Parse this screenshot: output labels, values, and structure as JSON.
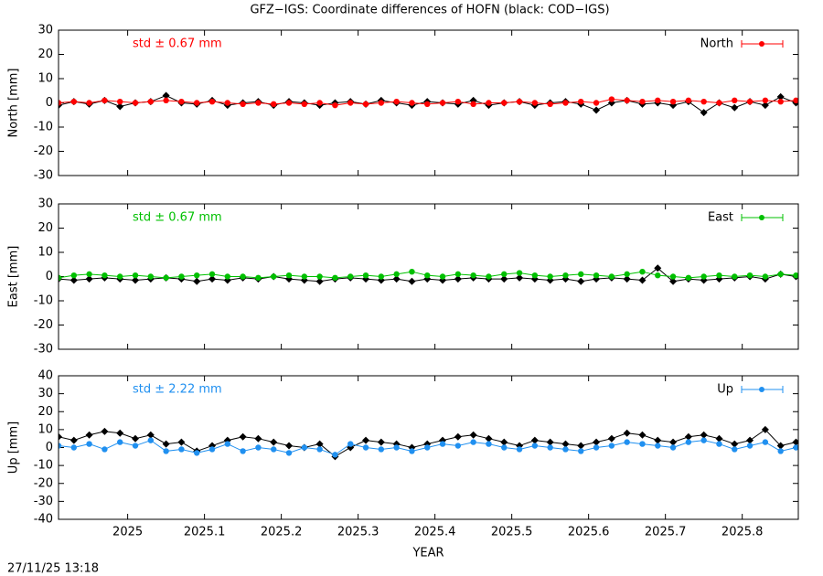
{
  "title": "GFZ−IGS: Coordinate differences of HOFN (black: COD−IGS)",
  "footer": "27/11/25 13:18",
  "chart_data": [
    {
      "type": "line",
      "ylabel": "North [mm]",
      "annotation": {
        "text": "std ± 0.67 mm",
        "color": "#ff0000"
      },
      "xlim": [
        2024.91,
        2025.873
      ],
      "xticks": [
        2025,
        2025.1,
        2025.2,
        2025.3,
        2025.4,
        2025.5,
        2025.6,
        2025.7,
        2025.8
      ],
      "xtick_labels": false,
      "ylim": [
        -30,
        30
      ],
      "yticks": [
        -30,
        -20,
        -10,
        0,
        10,
        20,
        30
      ],
      "x": [
        2024.91,
        2024.93,
        2024.95,
        2024.97,
        2024.99,
        2025.01,
        2025.03,
        2025.05,
        2025.07,
        2025.09,
        2025.11,
        2025.13,
        2025.15,
        2025.17,
        2025.19,
        2025.21,
        2025.23,
        2025.25,
        2025.27,
        2025.29,
        2025.31,
        2025.33,
        2025.35,
        2025.37,
        2025.39,
        2025.41,
        2025.43,
        2025.45,
        2025.47,
        2025.49,
        2025.51,
        2025.53,
        2025.55,
        2025.57,
        2025.59,
        2025.61,
        2025.63,
        2025.65,
        2025.67,
        2025.69,
        2025.71,
        2025.73,
        2025.75,
        2025.77,
        2025.79,
        2025.81,
        2025.83,
        2025.85,
        2025.87
      ],
      "series": [
        {
          "color": "#000000",
          "marker": "diamond",
          "values": [
            -1,
            0.5,
            -0.5,
            1,
            -1.5,
            0,
            0.5,
            3,
            0,
            -0.5,
            1,
            -1,
            0,
            0.5,
            -1,
            0.5,
            0,
            -1,
            0,
            0.5,
            -0.5,
            1,
            0,
            -1,
            0.5,
            0,
            -0.5,
            1,
            -1,
            0,
            0.5,
            -1,
            0,
            0.5,
            -0.5,
            -3,
            0,
            1,
            -0.5,
            0,
            -1,
            0.5,
            -4,
            0,
            -2,
            0.5,
            -1,
            2.5,
            0
          ]
        },
        {
          "name": "North",
          "color": "#ff0000",
          "marker": "circle",
          "values": [
            0,
            0.5,
            0,
            1,
            0.5,
            0,
            0.5,
            1,
            0.5,
            0,
            0.5,
            0,
            -0.5,
            0,
            -0.5,
            0,
            -0.5,
            0,
            -1,
            0,
            -0.5,
            0,
            0.5,
            0,
            -0.5,
            0,
            0.5,
            -0.5,
            0,
            0,
            0.5,
            0,
            -0.5,
            0,
            0.5,
            0,
            1.5,
            1,
            0.5,
            1,
            0.5,
            1,
            0.5,
            0,
            1,
            0.5,
            1,
            0.5,
            1
          ]
        }
      ]
    },
    {
      "type": "line",
      "ylabel": "East [mm]",
      "annotation": {
        "text": "std ± 0.67 mm",
        "color": "#00c000"
      },
      "xlim": [
        2024.91,
        2025.873
      ],
      "xticks": [
        2025,
        2025.1,
        2025.2,
        2025.3,
        2025.4,
        2025.5,
        2025.6,
        2025.7,
        2025.8
      ],
      "xtick_labels": false,
      "ylim": [
        -30,
        30
      ],
      "yticks": [
        -30,
        -20,
        -10,
        0,
        10,
        20,
        30
      ],
      "x": [
        2024.91,
        2024.93,
        2024.95,
        2024.97,
        2024.99,
        2025.01,
        2025.03,
        2025.05,
        2025.07,
        2025.09,
        2025.11,
        2025.13,
        2025.15,
        2025.17,
        2025.19,
        2025.21,
        2025.23,
        2025.25,
        2025.27,
        2025.29,
        2025.31,
        2025.33,
        2025.35,
        2025.37,
        2025.39,
        2025.41,
        2025.43,
        2025.45,
        2025.47,
        2025.49,
        2025.51,
        2025.53,
        2025.55,
        2025.57,
        2025.59,
        2025.61,
        2025.63,
        2025.65,
        2025.67,
        2025.69,
        2025.71,
        2025.73,
        2025.75,
        2025.77,
        2025.79,
        2025.81,
        2025.83,
        2025.85,
        2025.87
      ],
      "series": [
        {
          "color": "#000000",
          "marker": "diamond",
          "values": [
            -1,
            -1.5,
            -1,
            -0.5,
            -1,
            -1.5,
            -1,
            -0.5,
            -1,
            -2,
            -1,
            -1.5,
            -0.5,
            -1,
            0,
            -1,
            -1.5,
            -2,
            -1,
            -0.5,
            -1,
            -1.5,
            -1,
            -2,
            -1,
            -1.5,
            -1,
            -0.5,
            -1,
            -1,
            -0.5,
            -1,
            -1.5,
            -1,
            -2,
            -1,
            -0.5,
            -1,
            -1.5,
            3.5,
            -2,
            -1,
            -1.5,
            -1,
            -0.5,
            0,
            -1,
            1,
            0
          ]
        },
        {
          "name": "East",
          "color": "#00c000",
          "marker": "circle",
          "values": [
            -0.5,
            0.5,
            1,
            0.5,
            0,
            0.5,
            0,
            -0.5,
            0,
            0.5,
            1,
            0,
            0,
            -0.5,
            0,
            0.5,
            0,
            0,
            -0.5,
            0,
            0.5,
            0,
            1,
            2,
            0.5,
            0,
            1,
            0.5,
            0,
            1,
            1.5,
            0.5,
            0,
            0.5,
            1,
            0.5,
            0,
            1,
            2,
            0.5,
            0,
            -0.5,
            0,
            0.5,
            0,
            0.5,
            0,
            1,
            0.5
          ]
        }
      ]
    },
    {
      "type": "line",
      "ylabel": "Up [mm]",
      "xlabel": "YEAR",
      "annotation": {
        "text": "std ± 2.22 mm",
        "color": "#2090f0"
      },
      "xlim": [
        2024.91,
        2025.873
      ],
      "xticks": [
        2025,
        2025.1,
        2025.2,
        2025.3,
        2025.4,
        2025.5,
        2025.6,
        2025.7,
        2025.8
      ],
      "xtick_labels": true,
      "ylim": [
        -40,
        40
      ],
      "yticks": [
        -40,
        -30,
        -20,
        -10,
        0,
        10,
        20,
        30,
        40
      ],
      "x": [
        2024.91,
        2024.93,
        2024.95,
        2024.97,
        2024.99,
        2025.01,
        2025.03,
        2025.05,
        2025.07,
        2025.09,
        2025.11,
        2025.13,
        2025.15,
        2025.17,
        2025.19,
        2025.21,
        2025.23,
        2025.25,
        2025.27,
        2025.29,
        2025.31,
        2025.33,
        2025.35,
        2025.37,
        2025.39,
        2025.41,
        2025.43,
        2025.45,
        2025.47,
        2025.49,
        2025.51,
        2025.53,
        2025.55,
        2025.57,
        2025.59,
        2025.61,
        2025.63,
        2025.65,
        2025.67,
        2025.69,
        2025.71,
        2025.73,
        2025.75,
        2025.77,
        2025.79,
        2025.81,
        2025.83,
        2025.85,
        2025.87
      ],
      "series": [
        {
          "color": "#000000",
          "marker": "diamond",
          "values": [
            6,
            4,
            7,
            9,
            8,
            5,
            7,
            2,
            3,
            -2,
            1,
            4,
            6,
            5,
            3,
            1,
            0,
            2,
            -5,
            0,
            4,
            3,
            2,
            0,
            2,
            4,
            6,
            7,
            5,
            3,
            1,
            4,
            3,
            2,
            1,
            3,
            5,
            8,
            7,
            4,
            3,
            6,
            7,
            5,
            2,
            4,
            10,
            1,
            3
          ]
        },
        {
          "name": "Up",
          "color": "#2090f0",
          "marker": "circle",
          "values": [
            1,
            0,
            2,
            -1,
            3,
            1,
            4,
            -2,
            -1,
            -3,
            -1,
            2,
            -2,
            0,
            -1,
            -3,
            0,
            -1,
            -4,
            2,
            0,
            -1,
            0,
            -2,
            0,
            2,
            1,
            3,
            2,
            0,
            -1,
            1,
            0,
            -1,
            -2,
            0,
            1,
            3,
            2,
            1,
            0,
            3,
            4,
            2,
            -1,
            1,
            3,
            -2,
            0
          ]
        }
      ]
    }
  ]
}
